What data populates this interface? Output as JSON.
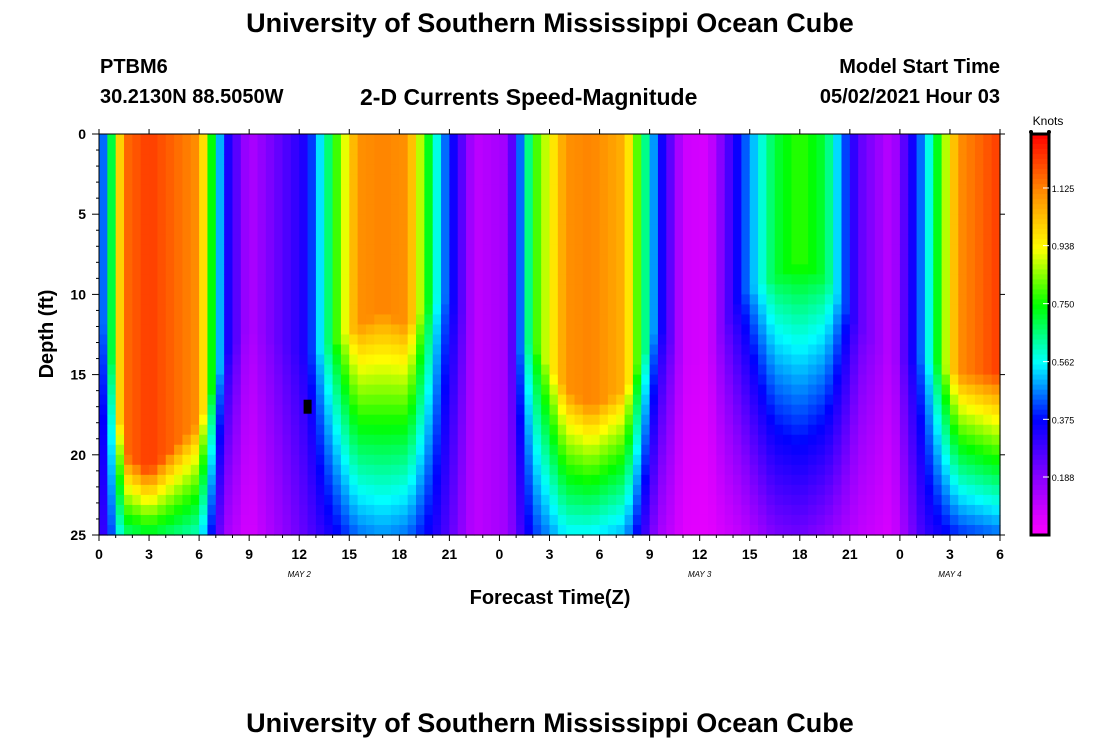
{
  "header": {
    "title": "University of Southern Mississippi Ocean Cube",
    "station_name": "PTBM6",
    "station_coords": "30.2130N  88.5050W",
    "chart_title": "2-D Currents Speed-Magnitude",
    "model_start_label": "Model Start Time",
    "model_start_value": "05/02/2021 Hour 03"
  },
  "footer": {
    "title": "University of Southern Mississippi Ocean Cube"
  },
  "chart_data": {
    "type": "heatmap",
    "title": "2-D Currents Speed-Magnitude",
    "xlabel": "Forecast Time(Z)",
    "ylabel": "Depth (ft)",
    "x_range_hours": [
      0,
      54
    ],
    "x_ticks": [
      {
        "hour": 0,
        "label": "0"
      },
      {
        "hour": 3,
        "label": "3"
      },
      {
        "hour": 6,
        "label": "6"
      },
      {
        "hour": 9,
        "label": "9"
      },
      {
        "hour": 12,
        "label": "12"
      },
      {
        "hour": 15,
        "label": "15"
      },
      {
        "hour": 18,
        "label": "18"
      },
      {
        "hour": 21,
        "label": "21"
      },
      {
        "hour": 24,
        "label": "0"
      },
      {
        "hour": 27,
        "label": "3"
      },
      {
        "hour": 30,
        "label": "6"
      },
      {
        "hour": 33,
        "label": "9"
      },
      {
        "hour": 36,
        "label": "12"
      },
      {
        "hour": 39,
        "label": "15"
      },
      {
        "hour": 42,
        "label": "18"
      },
      {
        "hour": 45,
        "label": "21"
      },
      {
        "hour": 48,
        "label": "0"
      },
      {
        "hour": 51,
        "label": "3"
      },
      {
        "hour": 54,
        "label": "6"
      }
    ],
    "date_labels": [
      {
        "hour": 12,
        "label": "MAY 2"
      },
      {
        "hour": 36,
        "label": "MAY 3"
      },
      {
        "hour": 51,
        "label": "MAY 4"
      }
    ],
    "y_range_ft": [
      0,
      25
    ],
    "y_ticks": [
      0,
      5,
      10,
      15,
      20,
      25
    ],
    "colorbar": {
      "unit_label": "Knots",
      "range": [
        0,
        1.3
      ],
      "ticks": [
        "1.125",
        "0.938",
        "0.750",
        "0.562",
        "0.375",
        "0.188"
      ],
      "tick_values": [
        1.125,
        0.938,
        0.75,
        0.562,
        0.375,
        0.188
      ],
      "colors": [
        "#ff00ff",
        "#8800ff",
        "#0000ff",
        "#00ffff",
        "#00ff00",
        "#ffff00",
        "#ff8800",
        "#ff0000"
      ]
    },
    "speed_profile": {
      "hours": [
        0,
        0.5,
        1.5,
        3,
        6,
        7.5,
        9,
        12.5,
        15.5,
        17,
        18.5,
        20.5,
        22.5,
        24.5,
        26,
        28,
        29.5,
        31.5,
        33.5,
        35,
        36.5,
        38.5,
        40.5,
        42,
        43.5,
        45.5,
        47.5,
        49.5,
        51.5,
        54
      ],
      "surface_knots": [
        0.35,
        0.55,
        1.15,
        1.22,
        1.1,
        0.38,
        0.12,
        0.35,
        1.1,
        1.12,
        1.1,
        0.5,
        0.1,
        0.15,
        0.75,
        1.1,
        1.12,
        1.05,
        0.4,
        0.08,
        0.06,
        0.4,
        0.7,
        0.78,
        0.7,
        0.25,
        0.1,
        0.5,
        1.1,
        1.22
      ],
      "bottom_knots": [
        0.25,
        0.35,
        0.65,
        0.7,
        0.6,
        0.15,
        0.06,
        0.25,
        0.45,
        0.48,
        0.45,
        0.3,
        0.1,
        0.15,
        0.4,
        0.55,
        0.55,
        0.5,
        0.15,
        0.05,
        0.04,
        0.1,
        0.2,
        0.22,
        0.18,
        0.1,
        0.06,
        0.3,
        0.4,
        0.45
      ],
      "decay_depth_ft": [
        12,
        12,
        20,
        21,
        18,
        14,
        12,
        14,
        12,
        11,
        12,
        10,
        12,
        14,
        13,
        16,
        17,
        16,
        12,
        14,
        14,
        10,
        9,
        8,
        9,
        12,
        14,
        14,
        15,
        15
      ]
    },
    "marker": {
      "hour": 12.5,
      "depth_ft": 17
    }
  }
}
